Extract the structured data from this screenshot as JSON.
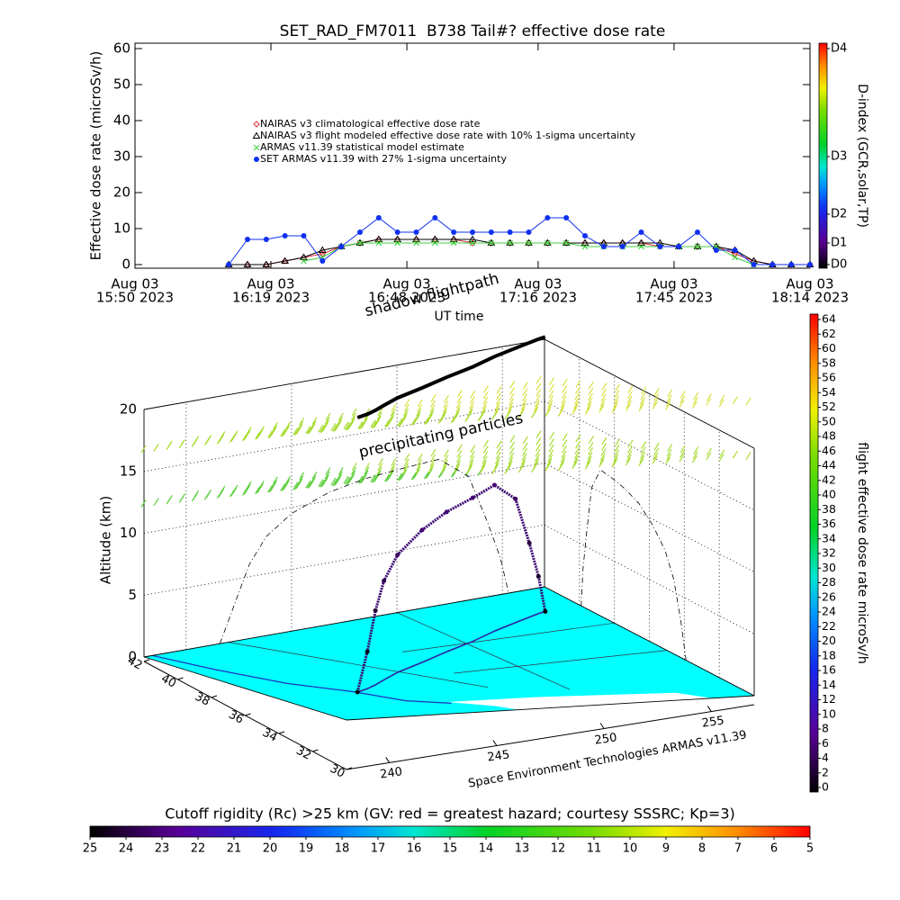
{
  "chart_data": [
    {
      "type": "line",
      "title": "SET_RAD_FM7011  B738 Tail#? effective dose rate",
      "y_label": "Effective dose rate (microSv/h)",
      "x_label": "UT time",
      "x": [
        "2023-08-03T16:10",
        "2023-08-03T16:14",
        "2023-08-03T16:18",
        "2023-08-03T16:22",
        "2023-08-03T16:26",
        "2023-08-03T16:30",
        "2023-08-03T16:34",
        "2023-08-03T16:38",
        "2023-08-03T16:42",
        "2023-08-03T16:46",
        "2023-08-03T16:50",
        "2023-08-03T16:54",
        "2023-08-03T16:58",
        "2023-08-03T17:02",
        "2023-08-03T17:06",
        "2023-08-03T17:10",
        "2023-08-03T17:14",
        "2023-08-03T17:18",
        "2023-08-03T17:22",
        "2023-08-03T17:26",
        "2023-08-03T17:30",
        "2023-08-03T17:34",
        "2023-08-03T17:38",
        "2023-08-03T17:42",
        "2023-08-03T17:46",
        "2023-08-03T17:50",
        "2023-08-03T17:54",
        "2023-08-03T17:58",
        "2023-08-03T18:02",
        "2023-08-03T18:06",
        "2023-08-03T18:10",
        "2023-08-03T18:14"
      ],
      "xlim": [
        "2023-08-03T15:50",
        "2023-08-03T18:14"
      ],
      "xticks": [
        {
          "value": "2023-08-03T15:50",
          "label": [
            "Aug 03",
            "15:50 2023"
          ]
        },
        {
          "value": "2023-08-03T16:19",
          "label": [
            "Aug 03",
            "16:19 2023"
          ]
        },
        {
          "value": "2023-08-03T16:48",
          "label": [
            "Aug 03",
            "16:48 2023"
          ]
        },
        {
          "value": "2023-08-03T17:16",
          "label": [
            "Aug 03",
            "17:16 2023"
          ]
        },
        {
          "value": "2023-08-03T17:45",
          "label": [
            "Aug 03",
            "17:45 2023"
          ]
        },
        {
          "value": "2023-08-03T18:14",
          "label": [
            "Aug 03",
            "18:14 2023"
          ]
        }
      ],
      "ylim": [
        -1,
        61.5
      ],
      "yticks": [
        0,
        10,
        20,
        30,
        40,
        50,
        60
      ],
      "legend": "upper left",
      "series": [
        {
          "name": "NAIRAS v3 climatological effective dose rate",
          "color": "#e03040",
          "marker": "diamond",
          "values": [
            0,
            0,
            0,
            1,
            2,
            3,
            5,
            6,
            7,
            7,
            7,
            7,
            7,
            6,
            6,
            6,
            6,
            6,
            6,
            6,
            6,
            6,
            6,
            5,
            5,
            5,
            5,
            3,
            1,
            0,
            0,
            0
          ]
        },
        {
          "name": "NAIRAS v3 flight modeled effective dose rate with 10% 1-sigma uncertainty",
          "color": "#000000",
          "marker": "triangle",
          "values": [
            0,
            0,
            0,
            1,
            2,
            4,
            5,
            6,
            7,
            7,
            7,
            7,
            7,
            7,
            6,
            6,
            6,
            6,
            6,
            6,
            6,
            6,
            6,
            6,
            5,
            5,
            5,
            4,
            1,
            0,
            0,
            0
          ]
        },
        {
          "name": "ARMAS v11.39 statistical model estimate",
          "color": "#40d040",
          "marker": "x",
          "values": [
            null,
            null,
            null,
            null,
            1,
            2,
            5,
            6,
            6,
            6,
            6,
            6,
            6,
            6,
            6,
            6,
            6,
            6,
            6,
            5,
            5,
            5,
            5,
            5,
            5,
            5,
            5,
            2,
            0,
            null,
            null,
            null
          ]
        },
        {
          "name": "SET ARMAS v11.39 with 27% 1-sigma uncertainty",
          "color": "#1030f0",
          "marker": "circle",
          "values": [
            0,
            7,
            7,
            8,
            8,
            1,
            5,
            9,
            13,
            9,
            9,
            13,
            9,
            9,
            9,
            9,
            9,
            13,
            13,
            8,
            5,
            5,
            9,
            5,
            5,
            9,
            4,
            4,
            0,
            0,
            0,
            0
          ]
        }
      ]
    },
    {
      "type": "colorbar",
      "label": "D-index (GCR,solar,TP)",
      "ylim": [
        0,
        60
      ],
      "yticks": [
        {
          "value": 0,
          "label": "D0"
        },
        {
          "value": 6,
          "label": "D1"
        },
        {
          "value": 14,
          "label": "D2"
        },
        {
          "value": 30,
          "label": "D3"
        },
        {
          "value": 60,
          "label": "D4"
        }
      ]
    },
    {
      "type": "scatter3d",
      "z_label": "Altitude (km)",
      "annotations": [
        "shadow flightpath",
        "precipitating particles",
        "Space Environment Technologies ARMAS v11.39"
      ],
      "zlim": [
        0,
        20
      ],
      "zticks": [
        0,
        5,
        10,
        15,
        20
      ],
      "ylim": [
        30,
        42
      ],
      "yticks": [
        42,
        40,
        38,
        36,
        34,
        32,
        30
      ],
      "xlim": [
        238,
        257
      ],
      "xticks": [
        240,
        245,
        250,
        255
      ],
      "flight": {
        "lat": [
          33.9,
          34.2,
          34.6,
          35.1,
          35.8,
          36.6,
          37.4,
          38.1,
          38.8,
          39.3,
          39.6,
          39.8,
          39.9
        ],
        "lon": [
          241.6,
          242.3,
          243.0,
          243.8,
          245.0,
          246.8,
          248.6,
          250.4,
          252.0,
          253.4,
          254.3,
          254.9,
          255.3
        ],
        "alt": [
          0,
          3,
          6,
          8,
          9.5,
          10.7,
          11.3,
          11.6,
          11.8,
          10,
          6,
          3,
          0
        ],
        "dose": [
          0,
          1,
          3,
          4,
          5,
          6,
          6,
          6,
          6,
          5,
          3,
          2,
          0
        ]
      }
    },
    {
      "type": "colorbar",
      "label": "flight effective dose rate microSv/h",
      "ylim": [
        0,
        64
      ],
      "yticks": [
        0,
        2,
        4,
        6,
        8,
        10,
        12,
        14,
        16,
        18,
        20,
        22,
        24,
        26,
        28,
        30,
        32,
        34,
        36,
        38,
        40,
        42,
        44,
        46,
        48,
        50,
        52,
        54,
        56,
        58,
        60,
        62,
        64
      ]
    },
    {
      "type": "colorbar",
      "title": "Cutoff rigidity (Rc) >25 km (GV: red = greatest hazard; courtesy SSSRC; Kp=3)",
      "xlim": [
        25,
        5
      ],
      "xticks": [
        25,
        24,
        23,
        22,
        21,
        20,
        19,
        18,
        17,
        16,
        15,
        14,
        13,
        12,
        11,
        10,
        9,
        8,
        7,
        6,
        5
      ]
    }
  ]
}
